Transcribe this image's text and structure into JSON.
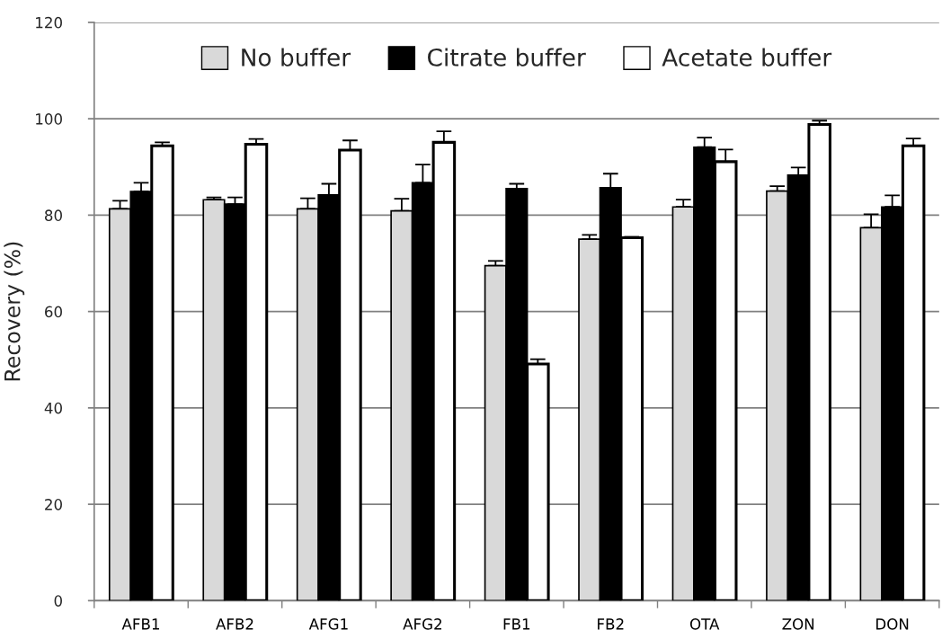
{
  "chart_data": {
    "type": "bar",
    "ylabel": "Recovery (%)",
    "categories": [
      "AFB1",
      "AFB2",
      "AFG1",
      "AFG2",
      "FB1",
      "FB2",
      "OTA",
      "ZON",
      "DON"
    ],
    "series": [
      {
        "name": "No buffer",
        "color": "#d9d9d9",
        "values": [
          81.3,
          83.2,
          81.3,
          80.9,
          69.5,
          75.0,
          81.7,
          85.0,
          77.4
        ],
        "errors": [
          [
            81.3,
            83.0
          ],
          [
            83.2,
            83.7
          ],
          [
            81.3,
            83.5
          ],
          [
            80.9,
            83.4
          ],
          [
            69.5,
            70.5
          ],
          [
            75.0,
            75.9
          ],
          [
            81.7,
            83.2
          ],
          [
            85.0,
            86.0
          ],
          [
            77.4,
            80.2
          ]
        ]
      },
      {
        "name": "Citrate buffer",
        "color": "#000000",
        "values": [
          84.9,
          82.3,
          84.2,
          86.7,
          85.5,
          85.7,
          94.1,
          88.3,
          81.7
        ],
        "errors": [
          [
            84.9,
            86.7
          ],
          [
            82.3,
            83.7
          ],
          [
            84.2,
            86.5
          ],
          [
            86.7,
            90.5
          ],
          [
            85.5,
            86.5
          ],
          [
            85.7,
            88.6
          ],
          [
            94.1,
            96.1
          ],
          [
            88.3,
            89.9
          ],
          [
            81.7,
            84.1
          ]
        ]
      },
      {
        "name": "Acetate buffer",
        "color": "#ffffff",
        "values": [
          94.4,
          94.7,
          93.5,
          95.1,
          49.1,
          75.3,
          91.1,
          98.8,
          94.4
        ],
        "errors": [
          [
            94.4,
            95.1
          ],
          [
            94.7,
            95.8
          ],
          [
            93.5,
            95.5
          ],
          [
            95.1,
            97.4
          ],
          [
            49.1,
            50.1
          ],
          [
            75.3,
            75.5
          ],
          [
            91.1,
            93.6
          ],
          [
            98.8,
            99.6
          ],
          [
            94.4,
            95.9
          ]
        ]
      }
    ],
    "ylim": [
      0,
      120
    ],
    "yticks": [
      0,
      20,
      40,
      60,
      80,
      100,
      120
    ],
    "grid": "y",
    "legend": "top"
  }
}
